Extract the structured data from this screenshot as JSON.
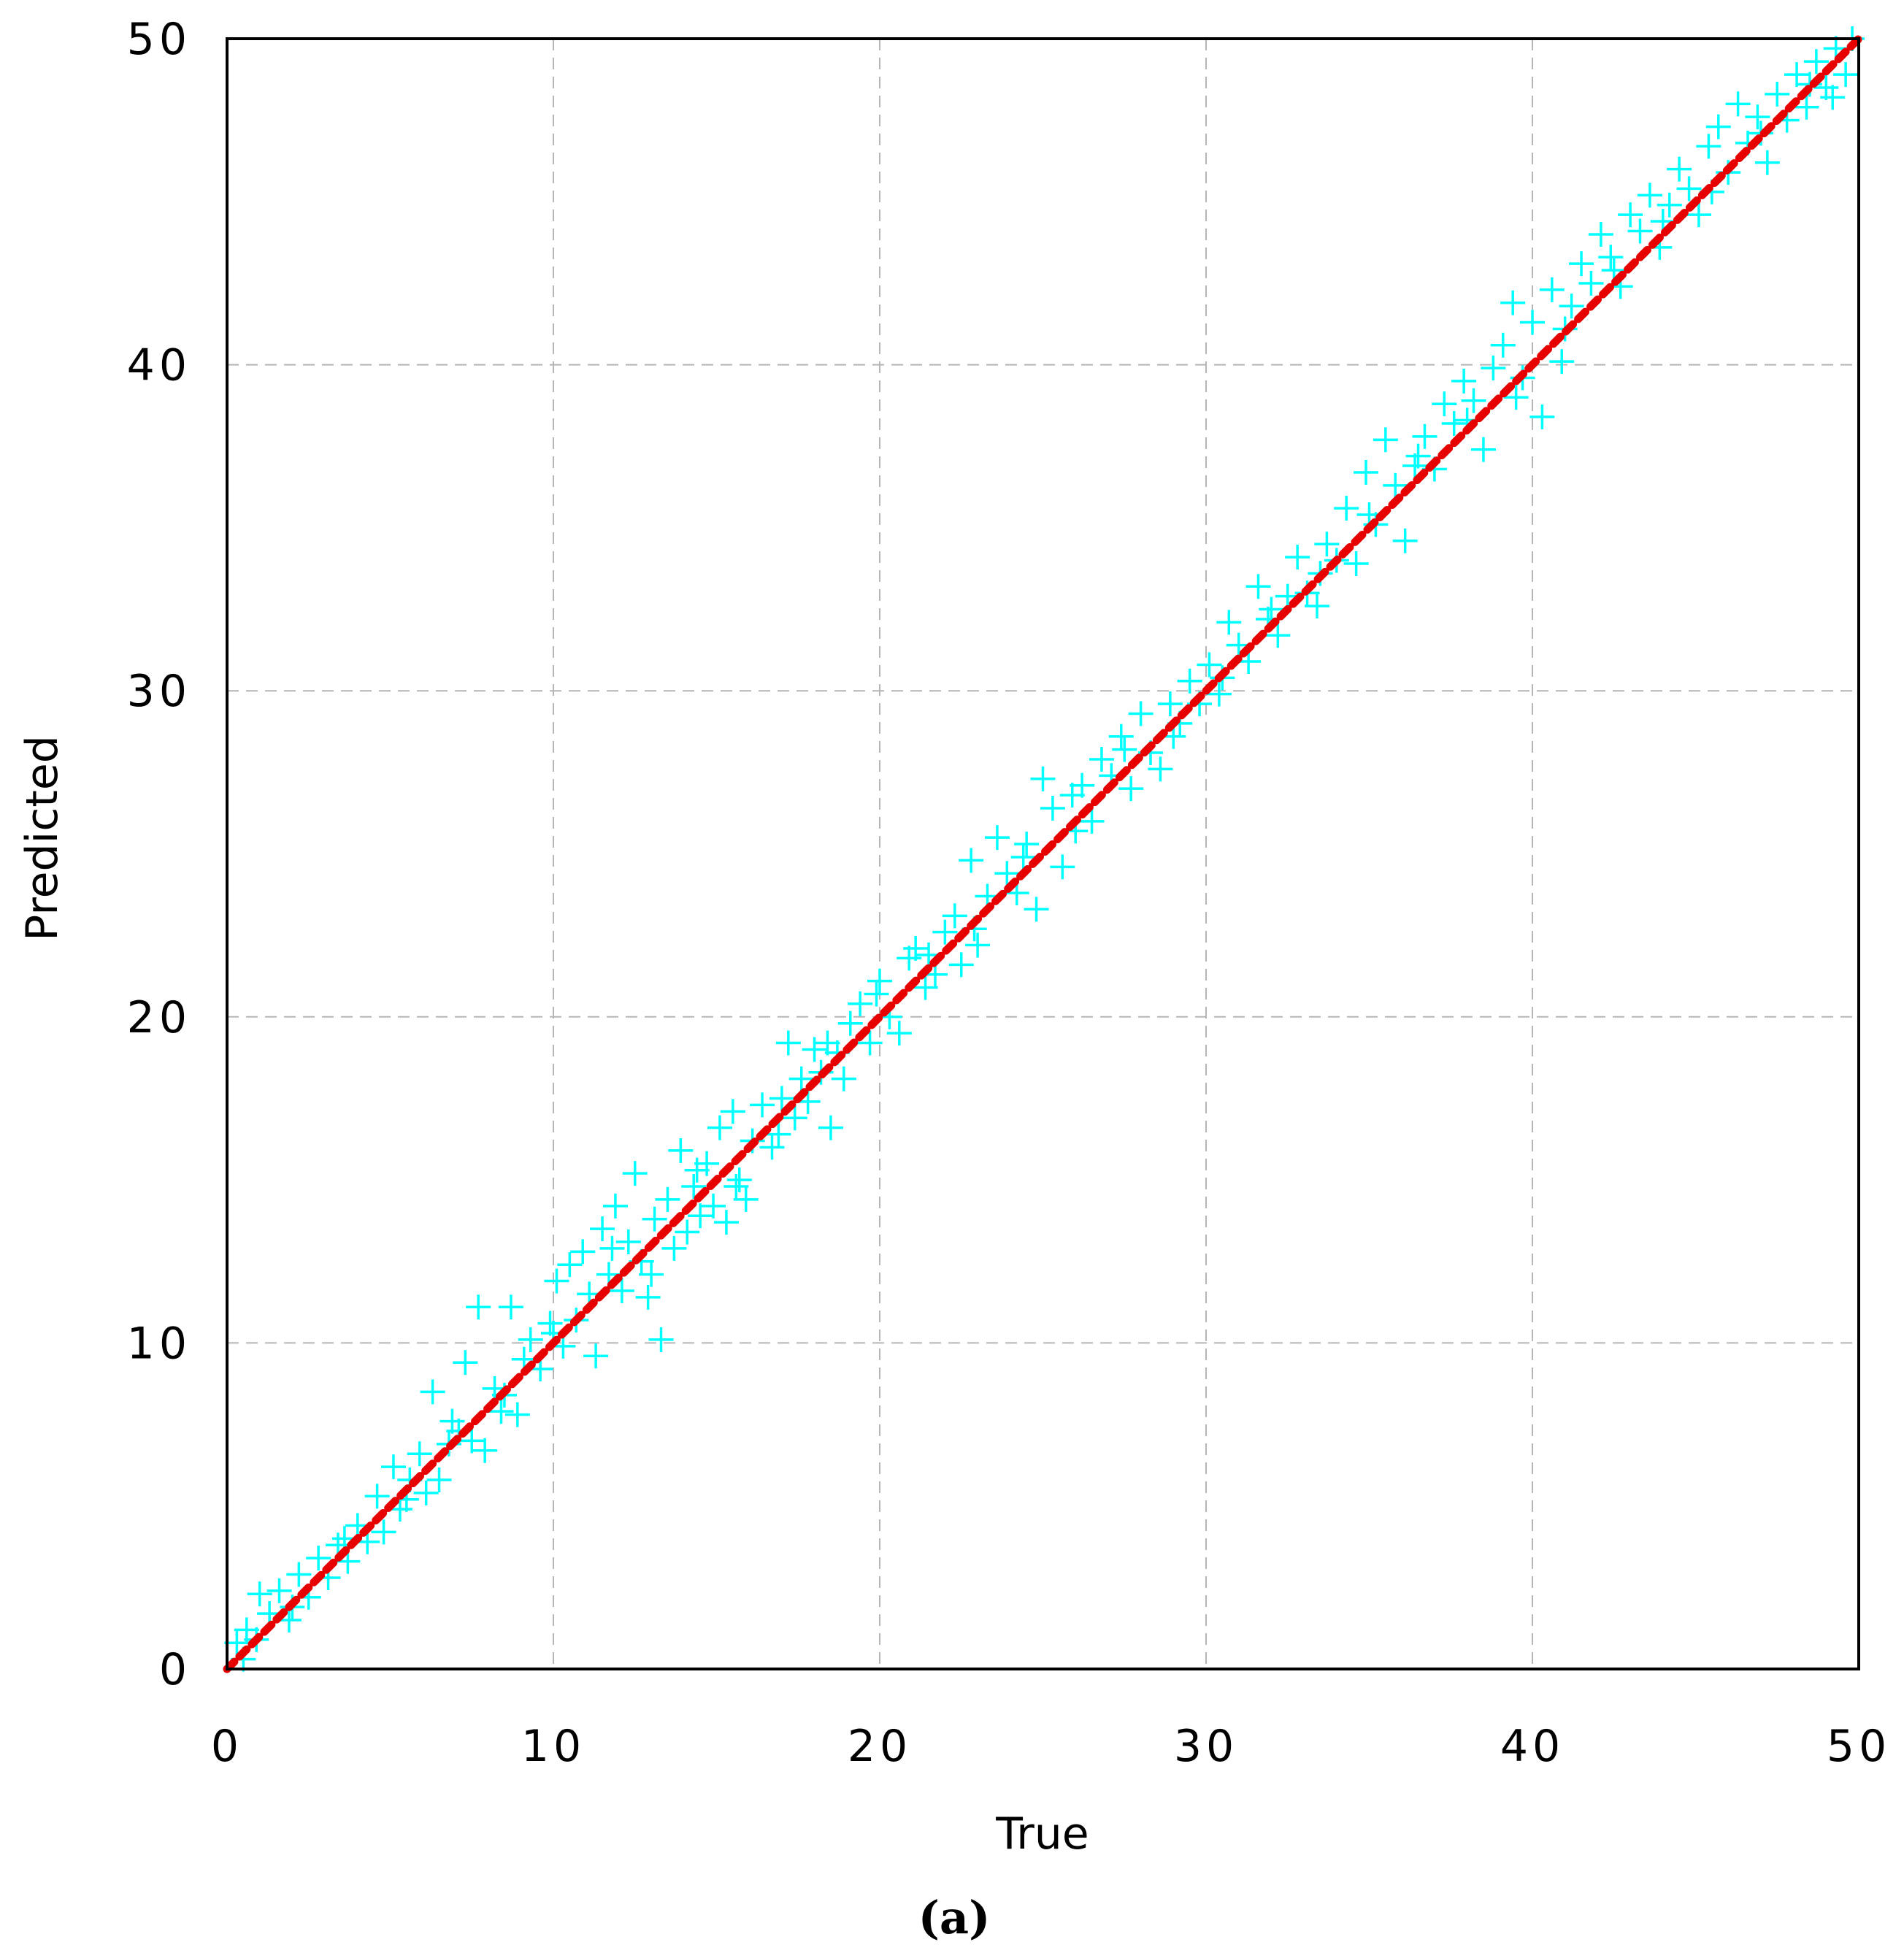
{
  "chart_data": {
    "type": "scatter",
    "xlabel": "True",
    "ylabel": "Predicted",
    "caption": "(a)",
    "xlim": [
      0,
      50
    ],
    "ylim": [
      0,
      50
    ],
    "xticks": [
      0,
      10,
      20,
      30,
      40,
      50
    ],
    "yticks": [
      0,
      10,
      20,
      30,
      40,
      50
    ],
    "grid": true,
    "marker_color": "#00ffff",
    "line_color": "#e60000",
    "reference_line": {
      "x": [
        0,
        50
      ],
      "y": [
        0,
        50
      ]
    },
    "series": [
      {
        "marker": "+",
        "points": [
          [
            0.3,
            0.8
          ],
          [
            0.6,
            1.2
          ],
          [
            0.9,
            0.9
          ],
          [
            1.0,
            2.3
          ],
          [
            1.3,
            1.7
          ],
          [
            1.6,
            2.4
          ],
          [
            1.9,
            1.5
          ],
          [
            2.2,
            2.9
          ],
          [
            2.5,
            2.2
          ],
          [
            2.8,
            3.4
          ],
          [
            3.1,
            2.8
          ],
          [
            3.4,
            3.8
          ],
          [
            3.7,
            3.3
          ],
          [
            4.0,
            4.4
          ],
          [
            4.3,
            3.9
          ],
          [
            4.6,
            5.3
          ],
          [
            4.8,
            4.2
          ],
          [
            5.1,
            6.2
          ],
          [
            5.3,
            4.9
          ],
          [
            5.6,
            5.8
          ],
          [
            5.9,
            6.6
          ],
          [
            6.1,
            5.4
          ],
          [
            6.3,
            8.5
          ],
          [
            6.5,
            5.8
          ],
          [
            6.8,
            6.9
          ],
          [
            7.1,
            7.3
          ],
          [
            7.3,
            9.4
          ],
          [
            7.5,
            7.0
          ],
          [
            7.7,
            11.1
          ],
          [
            7.9,
            6.7
          ],
          [
            8.2,
            8.6
          ],
          [
            8.5,
            8.4
          ],
          [
            8.7,
            11.1
          ],
          [
            8.9,
            7.8
          ],
          [
            9.1,
            9.5
          ],
          [
            9.3,
            10.1
          ],
          [
            9.6,
            9.2
          ],
          [
            9.9,
            10.6
          ],
          [
            10.1,
            11.9
          ],
          [
            10.3,
            9.9
          ],
          [
            10.5,
            12.4
          ],
          [
            10.7,
            10.7
          ],
          [
            10.9,
            12.8
          ],
          [
            11.1,
            11.5
          ],
          [
            11.3,
            9.6
          ],
          [
            11.5,
            13.5
          ],
          [
            11.7,
            12.1
          ],
          [
            11.9,
            14.2
          ],
          [
            12.1,
            11.6
          ],
          [
            12.3,
            13.1
          ],
          [
            12.5,
            15.2
          ],
          [
            12.7,
            12.5
          ],
          [
            12.9,
            11.4
          ],
          [
            13.1,
            13.8
          ],
          [
            13.3,
            10.1
          ],
          [
            13.5,
            14.4
          ],
          [
            13.7,
            12.9
          ],
          [
            13.9,
            15.9
          ],
          [
            14.1,
            13.4
          ],
          [
            14.3,
            14.8
          ],
          [
            14.5,
            13.9
          ],
          [
            14.7,
            15.5
          ],
          [
            14.9,
            14.2
          ],
          [
            15.1,
            16.6
          ],
          [
            15.3,
            13.7
          ],
          [
            15.5,
            17.1
          ],
          [
            15.7,
            15.0
          ],
          [
            15.9,
            14.4
          ],
          [
            16.1,
            16.2
          ],
          [
            16.4,
            17.3
          ],
          [
            16.7,
            16.0
          ],
          [
            17.0,
            17.5
          ],
          [
            17.2,
            19.2
          ],
          [
            17.4,
            16.9
          ],
          [
            17.6,
            18.1
          ],
          [
            17.8,
            17.4
          ],
          [
            18.0,
            19.0
          ],
          [
            18.2,
            18.3
          ],
          [
            18.5,
            16.6
          ],
          [
            18.7,
            18.9
          ],
          [
            18.9,
            18.1
          ],
          [
            19.1,
            19.8
          ],
          [
            19.4,
            20.4
          ],
          [
            19.7,
            19.2
          ],
          [
            20.0,
            21.1
          ],
          [
            20.3,
            20.0
          ],
          [
            20.6,
            19.5
          ],
          [
            20.9,
            21.8
          ],
          [
            21.1,
            22.1
          ],
          [
            21.4,
            20.9
          ],
          [
            21.7,
            21.3
          ],
          [
            22.0,
            22.6
          ],
          [
            22.3,
            23.1
          ],
          [
            22.5,
            21.6
          ],
          [
            22.8,
            24.8
          ],
          [
            23.0,
            22.2
          ],
          [
            23.3,
            23.7
          ],
          [
            23.6,
            25.5
          ],
          [
            23.9,
            24.4
          ],
          [
            24.2,
            23.8
          ],
          [
            24.5,
            25.3
          ],
          [
            24.8,
            23.3
          ],
          [
            25.0,
            27.3
          ],
          [
            25.3,
            26.4
          ],
          [
            25.6,
            24.6
          ],
          [
            25.9,
            26.8
          ],
          [
            26.2,
            27.1
          ],
          [
            26.5,
            26.0
          ],
          [
            26.8,
            27.9
          ],
          [
            27.1,
            27.4
          ],
          [
            27.4,
            28.6
          ],
          [
            27.7,
            27.0
          ],
          [
            28.0,
            29.3
          ],
          [
            28.3,
            28.1
          ],
          [
            28.6,
            27.6
          ],
          [
            28.9,
            29.6
          ],
          [
            29.2,
            29.0
          ],
          [
            29.5,
            30.3
          ],
          [
            29.8,
            29.6
          ],
          [
            30.1,
            30.8
          ],
          [
            30.4,
            29.9
          ],
          [
            30.7,
            32.1
          ],
          [
            31.0,
            31.4
          ],
          [
            31.3,
            30.9
          ],
          [
            31.6,
            33.2
          ],
          [
            31.9,
            32.2
          ],
          [
            32.2,
            31.7
          ],
          [
            32.5,
            32.9
          ],
          [
            32.8,
            34.1
          ],
          [
            33.1,
            33.0
          ],
          [
            33.4,
            32.6
          ],
          [
            33.7,
            34.5
          ],
          [
            34.0,
            34.0
          ],
          [
            34.3,
            35.6
          ],
          [
            34.6,
            33.9
          ],
          [
            34.9,
            36.7
          ],
          [
            35.2,
            35.1
          ],
          [
            35.5,
            37.7
          ],
          [
            35.8,
            36.3
          ],
          [
            36.1,
            34.6
          ],
          [
            36.4,
            36.9
          ],
          [
            36.7,
            37.8
          ],
          [
            37.0,
            36.8
          ],
          [
            37.3,
            38.8
          ],
          [
            37.6,
            38.2
          ],
          [
            37.9,
            39.5
          ],
          [
            38.2,
            38.9
          ],
          [
            38.5,
            37.4
          ],
          [
            38.8,
            39.9
          ],
          [
            39.1,
            40.6
          ],
          [
            39.4,
            41.9
          ],
          [
            39.7,
            39.6
          ],
          [
            40.0,
            41.3
          ],
          [
            40.3,
            38.4
          ],
          [
            40.6,
            42.3
          ],
          [
            40.9,
            40.1
          ],
          [
            41.2,
            41.8
          ],
          [
            41.5,
            43.1
          ],
          [
            41.8,
            42.5
          ],
          [
            42.1,
            44.0
          ],
          [
            42.4,
            43.3
          ],
          [
            42.7,
            42.4
          ],
          [
            43.0,
            44.6
          ],
          [
            43.3,
            44.1
          ],
          [
            43.6,
            45.2
          ],
          [
            43.9,
            43.6
          ],
          [
            44.2,
            44.9
          ],
          [
            44.5,
            46.0
          ],
          [
            44.8,
            45.4
          ],
          [
            45.1,
            44.6
          ],
          [
            45.4,
            46.7
          ],
          [
            45.7,
            47.3
          ],
          [
            46.0,
            45.9
          ],
          [
            46.3,
            48.0
          ],
          [
            46.6,
            46.8
          ],
          [
            46.9,
            47.6
          ],
          [
            47.2,
            46.2
          ],
          [
            47.5,
            48.3
          ],
          [
            47.8,
            47.5
          ],
          [
            48.1,
            48.9
          ],
          [
            48.4,
            47.9
          ],
          [
            48.7,
            49.3
          ],
          [
            49.0,
            48.5
          ],
          [
            49.3,
            49.7
          ],
          [
            49.6,
            48.9
          ],
          [
            49.8,
            50.0
          ],
          [
            0.5,
            0.3
          ],
          [
            2.0,
            1.9
          ],
          [
            3.6,
            4.0
          ],
          [
            5.5,
            5.2
          ],
          [
            6.9,
            7.6
          ],
          [
            8.4,
            7.9
          ],
          [
            10.0,
            10.3
          ],
          [
            11.8,
            12.9
          ],
          [
            13.0,
            12.1
          ],
          [
            14.4,
            15.3
          ],
          [
            15.6,
            14.8
          ],
          [
            16.9,
            16.4
          ],
          [
            18.4,
            19.2
          ],
          [
            19.9,
            20.7
          ],
          [
            21.5,
            21.9
          ],
          [
            22.9,
            22.7
          ],
          [
            24.4,
            24.9
          ],
          [
            26.0,
            25.7
          ],
          [
            27.5,
            28.2
          ],
          [
            29.0,
            28.6
          ],
          [
            30.5,
            30.4
          ],
          [
            32.0,
            32.5
          ],
          [
            33.5,
            33.6
          ],
          [
            35.0,
            35.4
          ],
          [
            36.5,
            37.2
          ],
          [
            38.0,
            38.3
          ],
          [
            39.5,
            39.0
          ],
          [
            41.0,
            41.1
          ],
          [
            42.5,
            42.9
          ],
          [
            44.0,
            44.4
          ],
          [
            45.5,
            45.3
          ],
          [
            47.0,
            47.1
          ],
          [
            48.5,
            48.6
          ],
          [
            49.2,
            48.2
          ]
        ]
      }
    ]
  }
}
